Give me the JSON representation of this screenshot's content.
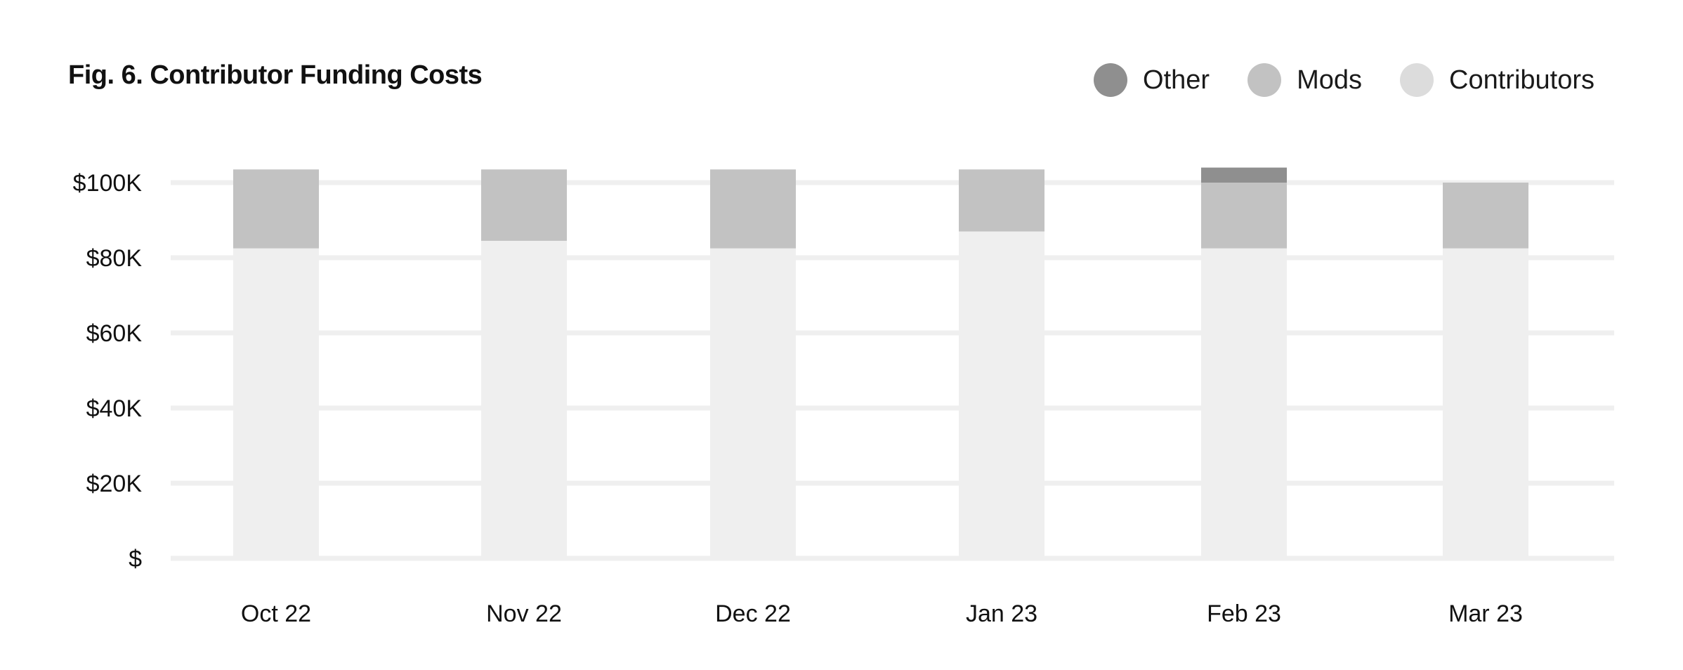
{
  "chart_data": {
    "type": "bar",
    "stacked": true,
    "title": "Fig. 6. Contributor Funding Costs",
    "xlabel": "",
    "ylabel": "",
    "categories": [
      "Oct 22",
      "Nov 22",
      "Dec 22",
      "Jan 23",
      "Feb 23",
      "Mar 23"
    ],
    "series": [
      {
        "name": "Contributors",
        "color": "#efefef",
        "values": [
          82500,
          84500,
          82500,
          87000,
          82500,
          82500
        ]
      },
      {
        "name": "Mods",
        "color": "#c2c2c2",
        "values": [
          21000,
          19000,
          21000,
          16500,
          17500,
          17500
        ]
      },
      {
        "name": "Other",
        "color": "#8f8f8f",
        "values": [
          0,
          0,
          0,
          0,
          4000,
          0
        ]
      }
    ],
    "legend_order": [
      "Other",
      "Mods",
      "Contributors"
    ],
    "y_ticks": [
      0,
      20000,
      40000,
      60000,
      80000,
      100000
    ],
    "y_tick_labels": [
      "$",
      "$20K",
      "$40K",
      "$60K",
      "$80K",
      "$100K"
    ],
    "ylim": [
      0,
      100000
    ],
    "grid": true,
    "legend_position": "top-right"
  }
}
